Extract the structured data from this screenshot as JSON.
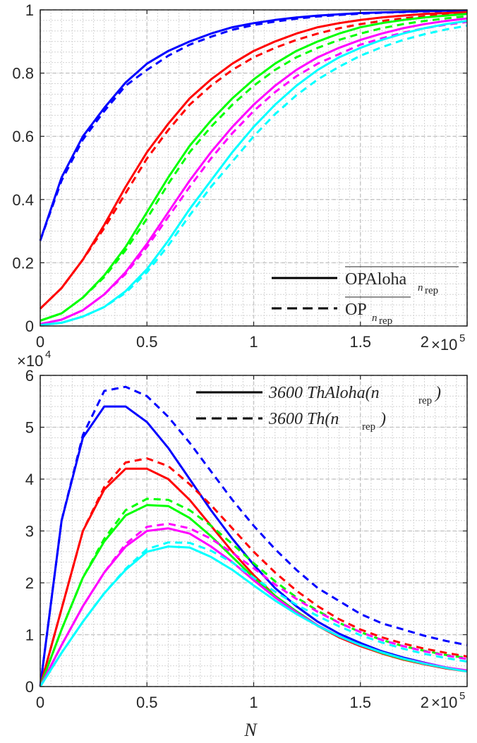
{
  "chart_data": [
    {
      "type": "line",
      "x_max": 200000,
      "xlim": [
        0,
        200000
      ],
      "ylim": [
        0,
        1
      ],
      "xticks": [
        0,
        50000,
        100000,
        150000,
        200000
      ],
      "xtick_labels": [
        "0",
        "0.5",
        "1",
        "1.5",
        "2"
      ],
      "x_exponent": {
        "base": "×10",
        "exp": "5"
      },
      "yticks": [
        0,
        0.2,
        0.4,
        0.6,
        0.8,
        1
      ],
      "ytick_labels": [
        "0",
        "0.2",
        "0.4",
        "0.6",
        "0.8",
        "1"
      ],
      "grid": true,
      "legend_position": "bottom-right",
      "legend": [
        {
          "style": "solid",
          "text": "OPAloha",
          "sub": "n",
          "subsub": "rep",
          "overline": true
        },
        {
          "style": "dashed",
          "text": "OP",
          "sub": "n",
          "subsub": "rep",
          "overline": true
        }
      ],
      "x": [
        0,
        10000,
        20000,
        30000,
        40000,
        50000,
        60000,
        70000,
        80000,
        90000,
        100000,
        110000,
        120000,
        130000,
        140000,
        150000,
        160000,
        170000,
        180000,
        190000,
        200000
      ],
      "series": [
        {
          "color": "#0000ff",
          "style": "solid",
          "values": [
            0.27,
            0.47,
            0.6,
            0.69,
            0.77,
            0.83,
            0.87,
            0.9,
            0.925,
            0.945,
            0.958,
            0.968,
            0.976,
            0.982,
            0.986,
            0.99,
            0.992,
            0.994,
            0.996,
            0.997,
            0.998
          ]
        },
        {
          "color": "#0000ff",
          "style": "dashed",
          "values": [
            0.27,
            0.46,
            0.59,
            0.68,
            0.76,
            0.81,
            0.855,
            0.89,
            0.915,
            0.937,
            0.952,
            0.963,
            0.972,
            0.979,
            0.984,
            0.988,
            0.991,
            0.993,
            0.995,
            0.996,
            0.997
          ]
        },
        {
          "color": "#ff0000",
          "style": "solid",
          "values": [
            0.055,
            0.12,
            0.21,
            0.32,
            0.44,
            0.55,
            0.64,
            0.72,
            0.78,
            0.83,
            0.87,
            0.9,
            0.925,
            0.945,
            0.958,
            0.968,
            0.976,
            0.982,
            0.987,
            0.99,
            0.993
          ]
        },
        {
          "color": "#ff0000",
          "style": "dashed",
          "values": [
            0.055,
            0.12,
            0.21,
            0.31,
            0.42,
            0.53,
            0.62,
            0.7,
            0.76,
            0.81,
            0.85,
            0.88,
            0.905,
            0.925,
            0.942,
            0.955,
            0.965,
            0.973,
            0.98,
            0.985,
            0.988
          ]
        },
        {
          "color": "#00ff00",
          "style": "solid",
          "values": [
            0.017,
            0.04,
            0.09,
            0.16,
            0.25,
            0.36,
            0.47,
            0.57,
            0.65,
            0.72,
            0.78,
            0.83,
            0.87,
            0.9,
            0.925,
            0.945,
            0.958,
            0.968,
            0.976,
            0.982,
            0.987
          ]
        },
        {
          "color": "#00ff00",
          "style": "dashed",
          "values": [
            0.017,
            0.04,
            0.09,
            0.155,
            0.24,
            0.34,
            0.45,
            0.55,
            0.63,
            0.7,
            0.76,
            0.81,
            0.85,
            0.88,
            0.905,
            0.925,
            0.942,
            0.955,
            0.965,
            0.973,
            0.98
          ]
        },
        {
          "color": "#ff00ff",
          "style": "solid",
          "values": [
            0.006,
            0.02,
            0.05,
            0.1,
            0.17,
            0.26,
            0.36,
            0.46,
            0.55,
            0.63,
            0.7,
            0.76,
            0.81,
            0.85,
            0.88,
            0.905,
            0.925,
            0.942,
            0.955,
            0.965,
            0.973
          ]
        },
        {
          "color": "#ff00ff",
          "style": "dashed",
          "values": [
            0.006,
            0.02,
            0.05,
            0.1,
            0.165,
            0.25,
            0.345,
            0.44,
            0.53,
            0.61,
            0.68,
            0.74,
            0.79,
            0.83,
            0.86,
            0.89,
            0.91,
            0.928,
            0.942,
            0.953,
            0.962
          ]
        },
        {
          "color": "#00ffff",
          "style": "solid",
          "values": [
            0.003,
            0.01,
            0.03,
            0.06,
            0.11,
            0.18,
            0.27,
            0.37,
            0.46,
            0.55,
            0.63,
            0.7,
            0.76,
            0.81,
            0.85,
            0.88,
            0.905,
            0.925,
            0.942,
            0.955,
            0.965
          ]
        },
        {
          "color": "#00ffff",
          "style": "dashed",
          "values": [
            0.003,
            0.01,
            0.03,
            0.06,
            0.105,
            0.17,
            0.255,
            0.35,
            0.44,
            0.52,
            0.6,
            0.67,
            0.73,
            0.78,
            0.82,
            0.855,
            0.882,
            0.905,
            0.923,
            0.938,
            0.95
          ]
        }
      ]
    },
    {
      "type": "line",
      "x_max": 200000,
      "xlim": [
        0,
        200000
      ],
      "ylim": [
        0,
        60000
      ],
      "xticks": [
        0,
        50000,
        100000,
        150000,
        200000
      ],
      "xtick_labels": [
        "0",
        "0.5",
        "1",
        "1.5",
        "2"
      ],
      "x_exponent": {
        "base": "×10",
        "exp": "5"
      },
      "yticks": [
        0,
        10000,
        20000,
        30000,
        40000,
        50000,
        60000
      ],
      "ytick_labels": [
        "0",
        "1",
        "2",
        "3",
        "4",
        "5",
        "6"
      ],
      "y_exponent": {
        "base": "×10",
        "exp": "4"
      },
      "xlabel": "N",
      "grid": true,
      "legend_position": "top-right",
      "legend": [
        {
          "style": "solid",
          "text": "3600 ThAloha(n",
          "sub": "rep",
          "tail": ")"
        },
        {
          "style": "dashed",
          "text": "3600 Th(n",
          "sub": "rep",
          "tail": ")"
        }
      ],
      "x": [
        0,
        10000,
        20000,
        30000,
        40000,
        50000,
        60000,
        70000,
        80000,
        90000,
        100000,
        110000,
        120000,
        130000,
        140000,
        150000,
        160000,
        170000,
        180000,
        190000,
        200000
      ],
      "series": [
        {
          "color": "#0000ff",
          "style": "solid",
          "values": [
            0,
            32000,
            48000,
            54000,
            54000,
            51000,
            46000,
            40000,
            34000,
            28500,
            23500,
            19000,
            15500,
            12500,
            10200,
            8400,
            6800,
            5600,
            4600,
            3700,
            3000
          ]
        },
        {
          "color": "#0000ff",
          "style": "dashed",
          "values": [
            0,
            32000,
            48500,
            57000,
            57800,
            56000,
            52000,
            47000,
            41500,
            36000,
            31000,
            26500,
            22500,
            19000,
            16500,
            14000,
            12200,
            11000,
            9800,
            8800,
            8000
          ]
        },
        {
          "color": "#ff0000",
          "style": "solid",
          "values": [
            0,
            15000,
            30000,
            38000,
            42000,
            42000,
            40000,
            36000,
            31000,
            26000,
            21500,
            17500,
            14500,
            11700,
            9500,
            7800,
            6400,
            5200,
            4300,
            3500,
            2900
          ]
        },
        {
          "color": "#ff0000",
          "style": "dashed",
          "values": [
            0,
            15000,
            30000,
            38500,
            43200,
            44000,
            42500,
            39000,
            35000,
            30500,
            26000,
            22000,
            18500,
            15500,
            13000,
            11000,
            9500,
            8300,
            7300,
            6500,
            5800
          ]
        },
        {
          "color": "#00ff00",
          "style": "solid",
          "values": [
            0,
            11000,
            21000,
            28000,
            33000,
            35000,
            34800,
            32500,
            29000,
            25000,
            21000,
            17500,
            14500,
            11800,
            9700,
            8000,
            6500,
            5300,
            4400,
            3600,
            3000
          ]
        },
        {
          "color": "#00ff00",
          "style": "dashed",
          "values": [
            0,
            11000,
            21000,
            28500,
            34000,
            36200,
            36000,
            34000,
            31000,
            27500,
            23800,
            20300,
            17200,
            14600,
            12300,
            10500,
            9000,
            7800,
            6900,
            6100,
            5500
          ]
        },
        {
          "color": "#ff00ff",
          "style": "solid",
          "values": [
            0,
            8000,
            15500,
            22000,
            27000,
            30000,
            30500,
            29500,
            27000,
            24000,
            20500,
            17200,
            14300,
            11800,
            9700,
            8000,
            6600,
            5400,
            4500,
            3700,
            3100
          ]
        },
        {
          "color": "#ff00ff",
          "style": "dashed",
          "values": [
            0,
            8000,
            15500,
            22000,
            27500,
            30800,
            31400,
            30500,
            28500,
            25800,
            22800,
            19700,
            16900,
            14400,
            12300,
            10500,
            9000,
            7800,
            6800,
            6000,
            5300
          ]
        },
        {
          "color": "#00ffff",
          "style": "solid",
          "values": [
            0,
            6500,
            12500,
            18000,
            22500,
            26000,
            27000,
            26800,
            25000,
            22500,
            19500,
            16600,
            14000,
            11700,
            9700,
            8000,
            6600,
            5400,
            4400,
            3600,
            2900
          ]
        },
        {
          "color": "#00ffff",
          "style": "dashed",
          "values": [
            0,
            6500,
            12500,
            18000,
            22700,
            26500,
            27800,
            27700,
            26200,
            23900,
            21000,
            18300,
            15800,
            13600,
            11600,
            9900,
            8500,
            7300,
            6300,
            5500,
            4800
          ]
        }
      ]
    }
  ]
}
